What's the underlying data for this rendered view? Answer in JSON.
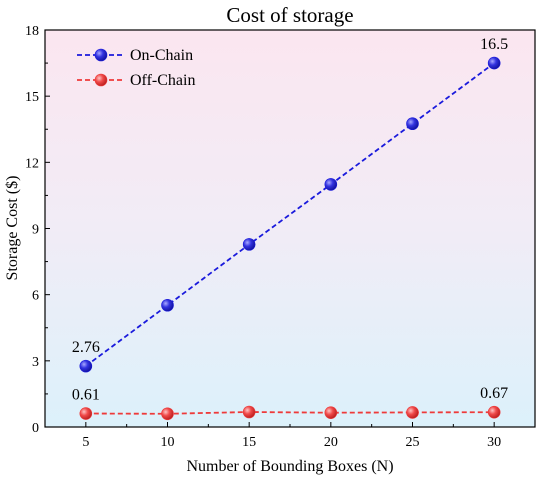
{
  "chart_data": {
    "type": "line",
    "title": "Cost of storage",
    "xlabel": "Number of Bounding Boxes (N)",
    "ylabel": "Storage Cost ($)",
    "x": [
      5,
      10,
      15,
      20,
      25,
      30
    ],
    "xticks": [
      "5",
      "10",
      "15",
      "20",
      "25",
      "30"
    ],
    "xlim": [
      2.5,
      32.5
    ],
    "ylim": [
      0,
      18
    ],
    "yticks": [
      "0",
      "3",
      "6",
      "9",
      "12",
      "15",
      "18"
    ],
    "grid": false,
    "legend_position": "top-left",
    "background": "vertical gradient pink to light blue",
    "series": [
      {
        "name": "On-Chain",
        "values": [
          2.76,
          5.52,
          8.28,
          11.0,
          13.75,
          16.5
        ],
        "color": "#1a1adc",
        "marker_color": "#2b2bd8"
      },
      {
        "name": "Off-Chain",
        "values": [
          0.61,
          0.6,
          0.68,
          0.65,
          0.66,
          0.67
        ],
        "color": "#ee3a3a",
        "marker_color": "#ee4444"
      }
    ],
    "annotations": [
      {
        "text": "16.5",
        "series": 0,
        "point": 5
      },
      {
        "text": "2.76",
        "series": 0,
        "point": 0
      },
      {
        "text": "0.61",
        "series": 1,
        "point": 0
      },
      {
        "text": "0.67",
        "series": 1,
        "point": 5
      }
    ]
  }
}
